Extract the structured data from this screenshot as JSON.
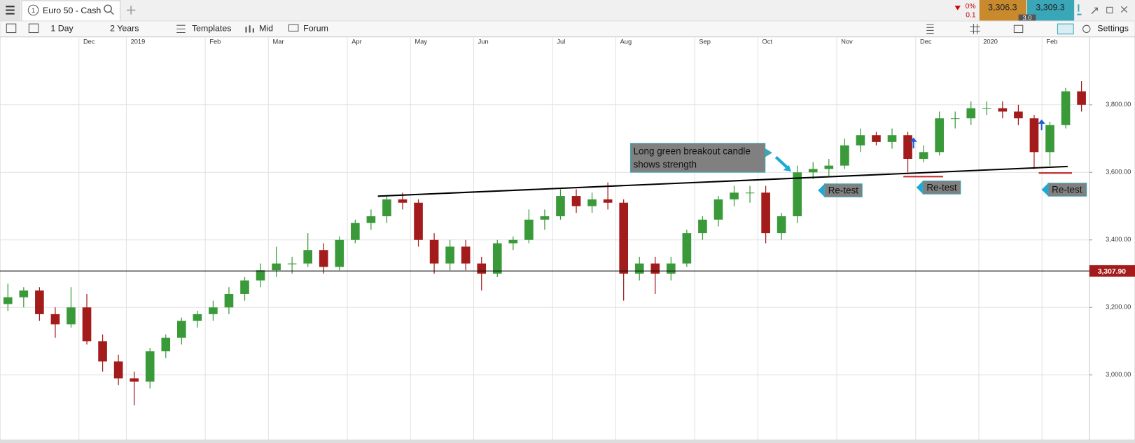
{
  "toolbar": {
    "menu_number": "1",
    "instrument": "Euro 50 - Cash",
    "interval": "1 Day",
    "range": "2 Years",
    "templates": "Templates",
    "price_type": "Mid",
    "forum": "Forum",
    "settings": "Settings"
  },
  "quote": {
    "change": "0%",
    "change_points": "0.1",
    "sell": "3,306.3",
    "buy": "3,309.3",
    "spread": "3.0"
  },
  "chart_data": {
    "type": "candlestick",
    "categories": [
      null,
      null,
      null,
      null,
      null,
      "Dec",
      null,
      null,
      "2019",
      null,
      null,
      null,
      null,
      "Feb",
      null,
      null,
      null,
      "Mar",
      null,
      null,
      null,
      null,
      "Apr",
      null,
      null,
      null,
      "May",
      null,
      null,
      null,
      "Jun",
      null,
      null,
      null,
      null,
      "Jul",
      null,
      null,
      null,
      "Aug",
      null,
      null,
      null,
      null,
      "Sep",
      null,
      null,
      null,
      "Oct",
      null,
      null,
      null,
      null,
      "Nov",
      null,
      null,
      null,
      null,
      "Dec",
      null,
      null,
      null,
      "2020",
      null,
      null,
      null,
      "Feb",
      null,
      null
    ],
    "open": [
      3210,
      3230,
      3250,
      3180,
      3150,
      3200,
      3100,
      3040,
      2990,
      2980,
      3070,
      3110,
      3160,
      3180,
      3200,
      3240,
      3280,
      3310,
      3330,
      3330,
      3370,
      3320,
      3400,
      3450,
      3470,
      3520,
      3510,
      3400,
      3330,
      3380,
      3330,
      3300,
      3390,
      3400,
      3460,
      3470,
      3530,
      3500,
      3520,
      3510,
      3300,
      3330,
      3300,
      3330,
      3420,
      3460,
      3520,
      3540,
      3540,
      3420,
      3470,
      3600,
      3610,
      3620,
      3680,
      3710,
      3690,
      3710,
      3640,
      3660,
      3760,
      3760,
      3790,
      3790,
      3780,
      3760,
      3660,
      3740,
      3840
    ],
    "high": [
      3270,
      3260,
      3260,
      3200,
      3260,
      3240,
      3120,
      3060,
      3010,
      3080,
      3120,
      3170,
      3190,
      3220,
      3260,
      3290,
      3330,
      3380,
      3350,
      3420,
      3390,
      3410,
      3460,
      3490,
      3530,
      3540,
      3520,
      3420,
      3400,
      3400,
      3350,
      3400,
      3410,
      3490,
      3490,
      3550,
      3550,
      3540,
      3570,
      3520,
      3350,
      3350,
      3350,
      3430,
      3470,
      3530,
      3560,
      3560,
      3560,
      3480,
      3620,
      3630,
      3640,
      3700,
      3730,
      3720,
      3730,
      3720,
      3680,
      3780,
      3780,
      3810,
      3810,
      3810,
      3800,
      3770,
      3750,
      3850,
      3870
    ],
    "low": [
      3190,
      3200,
      3160,
      3110,
      3140,
      3090,
      3010,
      2970,
      2910,
      2960,
      3050,
      3090,
      3140,
      3160,
      3180,
      3220,
      3260,
      3290,
      3300,
      3320,
      3300,
      3310,
      3390,
      3430,
      3450,
      3490,
      3380,
      3300,
      3310,
      3310,
      3250,
      3290,
      3370,
      3390,
      3430,
      3460,
      3480,
      3480,
      3490,
      3220,
      3280,
      3240,
      3280,
      3320,
      3400,
      3440,
      3500,
      3510,
      3390,
      3400,
      3450,
      3580,
      3590,
      3610,
      3660,
      3680,
      3670,
      3600,
      3630,
      3650,
      3730,
      3740,
      3770,
      3760,
      3740,
      3610,
      3620,
      3730,
      3780
    ],
    "close": [
      3230,
      3250,
      3180,
      3150,
      3200,
      3100,
      3040,
      2990,
      2980,
      3070,
      3110,
      3160,
      3180,
      3200,
      3240,
      3280,
      3310,
      3330,
      3330,
      3370,
      3320,
      3400,
      3450,
      3470,
      3520,
      3510,
      3400,
      3330,
      3380,
      3330,
      3300,
      3390,
      3400,
      3460,
      3470,
      3530,
      3500,
      3520,
      3510,
      3300,
      3330,
      3300,
      3330,
      3420,
      3460,
      3520,
      3540,
      3540,
      3420,
      3470,
      3600,
      3610,
      3620,
      3680,
      3710,
      3690,
      3710,
      3640,
      3660,
      3760,
      3760,
      3790,
      3790,
      3780,
      3760,
      3660,
      3740,
      3840,
      3800
    ],
    "up_color": "#3a9a3a",
    "down_color": "#a31b1b",
    "ylim": [
      2807,
      3999
    ],
    "yticks": [
      {
        "value": 3000,
        "label": "3,000.00"
      },
      {
        "value": 3200,
        "label": "3,200.00"
      },
      {
        "value": 3400,
        "label": "3,400.00"
      },
      {
        "value": 3600,
        "label": "3,600.00"
      },
      {
        "value": 3800,
        "label": "3,800.00"
      }
    ],
    "grid": true,
    "last_price": {
      "value": 3307.9,
      "label": "3,307.90"
    },
    "annotations": {
      "callout": [
        "Long green breakout candle",
        "shows strength"
      ],
      "retest": [
        "Re-test",
        "Re-test",
        "Re-test"
      ]
    }
  }
}
